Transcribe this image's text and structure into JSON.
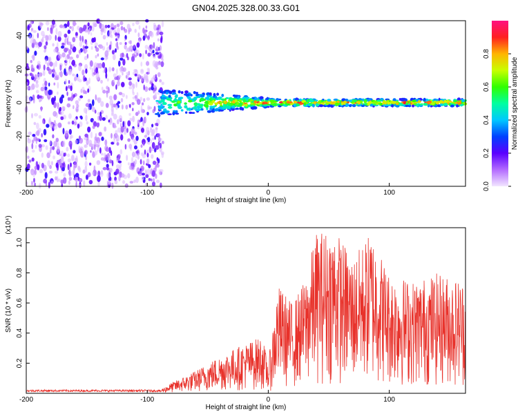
{
  "title": "GN04.2025.328.00.33.G01",
  "chart_data": [
    {
      "type": "heatmap",
      "xlabel": "Height of straight line (km)",
      "ylabel": "Frequency (Hz)",
      "xlim": [
        -200,
        163
      ],
      "ylim": [
        -50,
        49
      ],
      "xticks": [
        -200,
        -100,
        0,
        100
      ],
      "yticks": [
        -40,
        -20,
        0,
        20,
        40
      ],
      "colorbar": {
        "label": "Normalized spectral amplitude",
        "range": [
          0,
          1
        ],
        "ticks": [
          0.0,
          0.2,
          0.4,
          0.6,
          0.8
        ]
      },
      "regions": [
        {
          "x_range": [
            -200,
            -87
          ],
          "freq_range": [
            -50,
            49
          ],
          "amplitude_range": [
            0.03,
            0.25
          ],
          "description_type": "noise"
        },
        {
          "x_range": [
            -92,
            163
          ],
          "freq_center": 0,
          "freq_halfwidth_km_start": 8,
          "freq_halfwidth_km_end": 2,
          "amplitude_range": [
            0.3,
            1.0
          ],
          "description_type": "signal"
        }
      ]
    },
    {
      "type": "line",
      "xlabel": "Height of straight line (km)",
      "ylabel": "SNR (10 * v/v)",
      "yscale_label": "(x10⁴)",
      "xlim": [
        -200,
        163
      ],
      "ylim": [
        0,
        1.1
      ],
      "xticks": [
        -200,
        -100,
        0,
        100
      ],
      "yticks": [
        0.2,
        0.4,
        0.6,
        0.8,
        1.0
      ],
      "color": "#e8322b",
      "envelope": [
        {
          "x": -200,
          "y": 0.02
        },
        {
          "x": -90,
          "y": 0.02
        },
        {
          "x": -80,
          "y": 0.07
        },
        {
          "x": -60,
          "y": 0.15
        },
        {
          "x": -40,
          "y": 0.25
        },
        {
          "x": -20,
          "y": 0.33
        },
        {
          "x": -5,
          "y": 0.38
        },
        {
          "x": 0,
          "y": 0.2
        },
        {
          "x": 8,
          "y": 0.72
        },
        {
          "x": 20,
          "y": 0.6
        },
        {
          "x": 30,
          "y": 0.75
        },
        {
          "x": 40,
          "y": 1.08
        },
        {
          "x": 55,
          "y": 1.1
        },
        {
          "x": 70,
          "y": 0.9
        },
        {
          "x": 85,
          "y": 1.08
        },
        {
          "x": 100,
          "y": 0.8
        },
        {
          "x": 120,
          "y": 0.75
        },
        {
          "x": 140,
          "y": 0.8
        },
        {
          "x": 163,
          "y": 0.75
        }
      ]
    }
  ],
  "colorbar_tick_labels": [
    "0.0",
    "0.2",
    "0.4",
    "0.6",
    "0.8"
  ]
}
